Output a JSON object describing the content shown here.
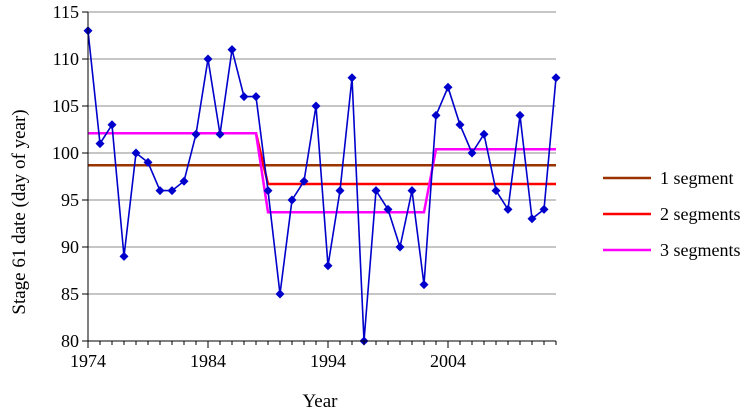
{
  "chart_data": {
    "type": "line",
    "title": "",
    "xlabel": "Year",
    "ylabel": "Stage 61 date (day of year)",
    "xlim": [
      1974,
      2013
    ],
    "ylim": [
      80,
      115
    ],
    "x_ticks": [
      1974,
      1984,
      1994,
      2004
    ],
    "y_ticks": [
      80,
      85,
      90,
      95,
      100,
      105,
      110,
      115
    ],
    "grid": "horizontal",
    "legend_position": "right",
    "observed": {
      "color": "#0000cc",
      "x": [
        1974,
        1975,
        1976,
        1977,
        1978,
        1979,
        1980,
        1981,
        1982,
        1983,
        1984,
        1985,
        1986,
        1987,
        1988,
        1989,
        1990,
        1991,
        1992,
        1993,
        1994,
        1995,
        1996,
        1997,
        1998,
        1999,
        2000,
        2001,
        2002,
        2003,
        2004,
        2005,
        2006,
        2007,
        2008,
        2009,
        2010,
        2011,
        2012,
        2013
      ],
      "values": [
        113,
        101,
        103,
        89,
        100,
        99,
        96,
        96,
        97,
        102,
        110,
        102,
        111,
        106,
        106,
        96,
        85,
        95,
        97,
        105,
        88,
        96,
        108,
        80,
        96,
        94,
        90,
        96,
        86,
        104,
        107,
        103,
        100,
        102,
        96,
        94,
        104,
        93,
        94,
        108
      ]
    },
    "series": [
      {
        "name": "1 segment",
        "color": "#993300",
        "points": [
          [
            1974,
            98.7
          ],
          [
            2013,
            98.7
          ]
        ]
      },
      {
        "name": "2 segments",
        "color": "#ff0000",
        "points": [
          [
            1974,
            102.1
          ],
          [
            1988,
            102.1
          ],
          [
            1989,
            96.7
          ],
          [
            2013,
            96.7
          ]
        ]
      },
      {
        "name": "3 segments",
        "color": "#ff00ff",
        "points": [
          [
            1974,
            102.1
          ],
          [
            1988,
            102.1
          ],
          [
            1989,
            93.7
          ],
          [
            2002,
            93.7
          ],
          [
            2003,
            100.4
          ],
          [
            2013,
            100.4
          ]
        ]
      }
    ]
  }
}
